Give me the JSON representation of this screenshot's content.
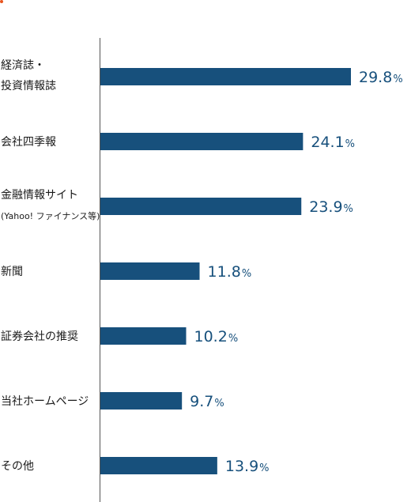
{
  "colors": {
    "bar": "#17507c",
    "value_text": "#17507c",
    "axis": "#555555",
    "accent_dot": "#e8541e"
  },
  "chart_data": {
    "type": "bar",
    "orientation": "horizontal",
    "categories": [
      [
        "経済誌・",
        "投資情報誌"
      ],
      [
        "会社四季報"
      ],
      [
        "金融情報サイト",
        "(Yahoo! ファイナンス等)"
      ],
      [
        "新聞"
      ],
      [
        "証券会社の推奨"
      ],
      [
        "当社ホームページ"
      ],
      [
        "その他"
      ]
    ],
    "values": [
      29.8,
      24.1,
      23.9,
      11.8,
      10.2,
      9.7,
      13.9
    ],
    "value_labels": [
      "29.8",
      "24.1",
      "23.9",
      "11.8",
      "10.2",
      "9.7",
      "13.9"
    ],
    "unit": "%",
    "xlim": [
      0,
      29.8
    ],
    "grid": false,
    "legend": "none"
  }
}
